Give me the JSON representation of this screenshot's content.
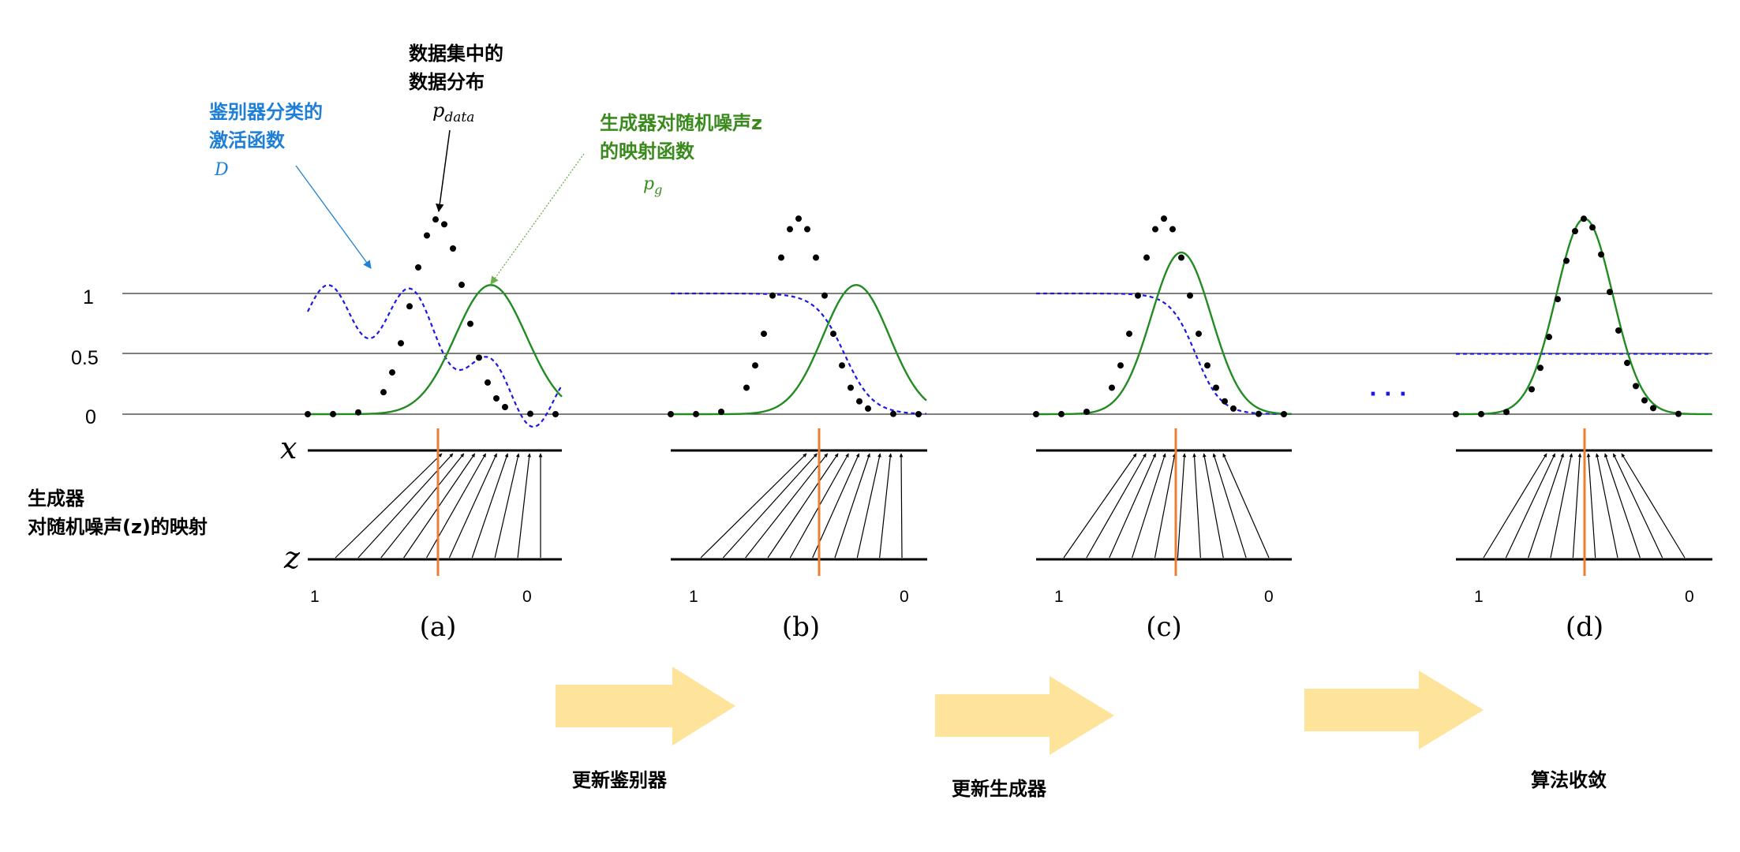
{
  "annotations": {
    "pdata_title_line1": "数据集中的",
    "pdata_title_line2": "数据分布",
    "pdata_symbol": "p",
    "pdata_subscript": "data",
    "d_title_line1": "鉴别器分类的",
    "d_title_line2": "激活函数",
    "d_symbol": "D",
    "pg_title_line1": "生成器对随机噪声z",
    "pg_title_line2": "的映射函数",
    "pg_symbol": "p",
    "pg_subscript": "g",
    "mapping_line1": "生成器",
    "mapping_line2": "对随机噪声(z)的映射"
  },
  "axis": {
    "y_ticks": [
      "1",
      "0.5",
      "0"
    ],
    "x_label": "x",
    "z_label": "z",
    "z_left": "1",
    "z_right": "0"
  },
  "panels": [
    {
      "label": "(a)"
    },
    {
      "label": "(b)"
    },
    {
      "label": "(c)"
    },
    {
      "label": "(d)"
    }
  ],
  "ellipsis": "· · ·",
  "steps": [
    {
      "label": "更新鉴别器"
    },
    {
      "label": "更新生成器"
    },
    {
      "label": "算法收敛"
    }
  ],
  "colors": {
    "data_dots": "#000000",
    "generator_curve": "#228B22",
    "discriminator_curve": "#1a1ae6",
    "d_annotation": "#1f7fd6",
    "pg_annotation": "#3a8a1e",
    "threshold_line": "#ed7d31",
    "arrow_fill": "#fde49a"
  }
}
